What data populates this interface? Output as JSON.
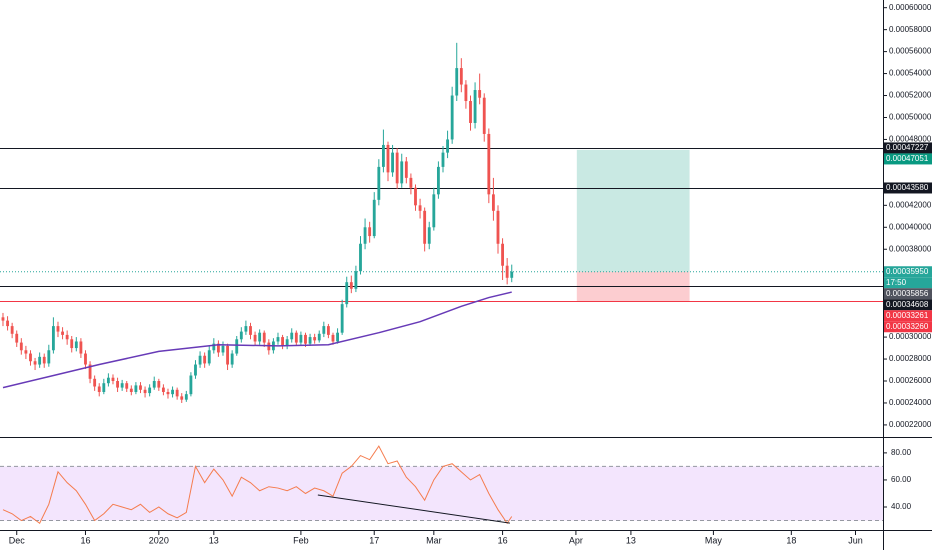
{
  "chart_data": [
    {
      "type": "candlestick",
      "up_color": "#26a69a",
      "down_color": "#ef5350",
      "xlim": [
        -0.65,
        192
      ],
      "ylim": [
        0.000209,
        0.000607
      ],
      "open": [
        0.000318,
        0.000315,
        0.00031,
        0.000303,
        0.000295,
        0.000288,
        0.000285,
        0.000278,
        0.000275,
        0.000282,
        0.000276,
        0.000288,
        0.00031,
        0.000305,
        0.000302,
        0.000298,
        0.00029,
        0.000296,
        0.000285,
        0.000275,
        0.000262,
        0.000255,
        0.00025,
        0.000258,
        0.000263,
        0.00026,
        0.000254,
        0.000258,
        0.000253,
        0.00025,
        0.000256,
        0.000252,
        0.000249,
        0.000254,
        0.00026,
        0.000254,
        0.00025,
        0.000248,
        0.000252,
        0.000246,
        0.000243,
        0.000248,
        0.000265,
        0.000275,
        0.000283,
        0.000276,
        0.000288,
        0.000294,
        0.000286,
        0.000292,
        0.000275,
        0.000285,
        0.000298,
        0.000305,
        0.00031,
        0.000302,
        0.000296,
        0.000304,
        0.000295,
        0.000288,
        0.000296,
        0.0003,
        0.000292,
        0.000298,
        0.000304,
        0.000295,
        0.000302,
        0.000294,
        0.0003,
        0.000297,
        0.000303,
        0.00031,
        0.000302,
        0.000296,
        0.000304,
        0.00033,
        0.00035,
        0.000344,
        0.00036,
        0.000385,
        0.0004,
        0.000392,
        0.000425,
        0.000455,
        0.000475,
        0.00045,
        0.000468,
        0.00044,
        0.00046,
        0.000445,
        0.000436,
        0.00042,
        0.000415,
        0.000385,
        0.0004,
        0.00043,
        0.000455,
        0.000468,
        0.00048,
        0.00052,
        0.000545,
        0.00053,
        0.000515,
        0.000495,
        0.000525,
        0.000518,
        0.000485,
        0.00043,
        0.000415,
        0.000385,
        0.000365,
        0.000354
      ],
      "high": [
        0.000322,
        0.000319,
        0.000313,
        0.000306,
        0.000299,
        0.000292,
        0.000288,
        0.000281,
        0.000286,
        0.000285,
        0.000293,
        0.000318,
        0.000314,
        0.000309,
        0.000306,
        0.000301,
        0.0003,
        0.000299,
        0.000288,
        0.000278,
        0.000265,
        0.000258,
        0.000262,
        0.000267,
        0.000266,
        0.000263,
        0.000261,
        0.00026,
        0.000256,
        0.000259,
        0.000259,
        0.000255,
        0.000257,
        0.000264,
        0.000262,
        0.000257,
        0.000253,
        0.000255,
        0.000254,
        0.000249,
        0.000251,
        0.000268,
        0.000279,
        0.000287,
        0.000286,
        0.000292,
        0.000299,
        0.000297,
        0.000296,
        0.000294,
        0.000288,
        0.000301,
        0.000309,
        0.000315,
        0.000313,
        0.000305,
        0.000307,
        0.000306,
        0.000298,
        0.000299,
        0.000304,
        0.000302,
        0.000301,
        0.000308,
        0.000306,
        0.000305,
        0.000304,
        0.000303,
        0.000303,
        0.000306,
        0.000314,
        0.000312,
        0.000304,
        0.000308,
        0.000334,
        0.000355,
        0.000356,
        0.000365,
        0.000392,
        0.000408,
        0.000405,
        0.000432,
        0.000462,
        0.000489,
        0.000478,
        0.000475,
        0.000472,
        0.000467,
        0.000464,
        0.000449,
        0.000439,
        0.000426,
        0.000418,
        0.000405,
        0.000436,
        0.00046,
        0.000474,
        0.000488,
        0.000528,
        0.000568,
        0.000554,
        0.000534,
        0.00052,
        0.000532,
        0.00054,
        0.000522,
        0.00049,
        0.000445,
        0.00042,
        0.00039,
        0.000372,
        0.000366
      ],
      "low": [
        0.00031,
        0.000306,
        0.000299,
        0.000291,
        0.000284,
        0.00028,
        0.000274,
        0.00027,
        0.000272,
        0.000272,
        0.000273,
        0.000285,
        0.0003,
        0.000298,
        0.000293,
        0.000286,
        0.000287,
        0.000281,
        0.000271,
        0.000258,
        0.000251,
        0.000246,
        0.000248,
        0.000255,
        0.000257,
        0.00025,
        0.000251,
        0.00025,
        0.000247,
        0.000248,
        0.000249,
        0.000245,
        0.000246,
        0.000252,
        0.000251,
        0.000247,
        0.000244,
        0.000245,
        0.000243,
        0.00024,
        0.000241,
        0.000246,
        0.000262,
        0.000272,
        0.000272,
        0.000274,
        0.000285,
        0.000282,
        0.000283,
        0.00027,
        0.000272,
        0.000283,
        0.000295,
        0.000302,
        0.000298,
        0.000292,
        0.000293,
        0.000291,
        0.000284,
        0.000285,
        0.000293,
        0.000289,
        0.000289,
        0.000295,
        0.000292,
        0.000293,
        0.000291,
        0.000292,
        0.000294,
        0.000295,
        0.0003,
        0.000299,
        0.000293,
        0.000294,
        0.000302,
        0.000327,
        0.00034,
        0.000341,
        0.000357,
        0.00038,
        0.000386,
        0.00039,
        0.00042,
        0.00045,
        0.000442,
        0.000446,
        0.000435,
        0.000436,
        0.00044,
        0.00043,
        0.000415,
        0.000408,
        0.000378,
        0.00038,
        0.000397,
        0.000426,
        0.00045,
        0.000463,
        0.000476,
        0.000515,
        0.000523,
        0.000508,
        0.000488,
        0.00049,
        0.000512,
        0.000478,
        0.000422,
        0.000406,
        0.000376,
        0.000352,
        0.000348,
        0.00035
      ],
      "close": [
        0.000315,
        0.00031,
        0.000303,
        0.000295,
        0.000288,
        0.000285,
        0.000278,
        0.000275,
        0.000282,
        0.000276,
        0.000288,
        0.00031,
        0.000305,
        0.000302,
        0.000298,
        0.00029,
        0.000296,
        0.000285,
        0.000275,
        0.000262,
        0.000255,
        0.00025,
        0.000258,
        0.000263,
        0.00026,
        0.000254,
        0.000258,
        0.000253,
        0.00025,
        0.000256,
        0.000252,
        0.000249,
        0.000254,
        0.00026,
        0.000254,
        0.00025,
        0.000248,
        0.000252,
        0.000246,
        0.000243,
        0.000248,
        0.000265,
        0.000275,
        0.000283,
        0.000276,
        0.000288,
        0.000294,
        0.000286,
        0.000292,
        0.000275,
        0.000285,
        0.000298,
        0.000305,
        0.00031,
        0.000302,
        0.000296,
        0.000304,
        0.000295,
        0.000288,
        0.000296,
        0.0003,
        0.000292,
        0.000298,
        0.000304,
        0.000295,
        0.000302,
        0.000294,
        0.0003,
        0.000297,
        0.000303,
        0.00031,
        0.000302,
        0.000296,
        0.000304,
        0.00033,
        0.00035,
        0.000344,
        0.00036,
        0.000385,
        0.0004,
        0.000392,
        0.000425,
        0.000455,
        0.000475,
        0.00045,
        0.000468,
        0.00044,
        0.00046,
        0.000445,
        0.000436,
        0.00042,
        0.000415,
        0.000385,
        0.0004,
        0.00043,
        0.000455,
        0.000468,
        0.00048,
        0.00052,
        0.000545,
        0.00053,
        0.000515,
        0.000495,
        0.000525,
        0.000518,
        0.000485,
        0.00043,
        0.000415,
        0.000385,
        0.000365,
        0.000354,
        0.0003595
      ],
      "ma": {
        "color": "#673ab7",
        "x": [
          0,
          10,
          21,
          34,
          47,
          60,
          71,
          82,
          91,
          100,
          106,
          111
        ],
        "values": [
          0.000254,
          0.000264,
          0.000275,
          0.000287,
          0.000293,
          0.000292,
          0.000293,
          0.000304,
          0.000314,
          0.000328,
          0.000336,
          0.000341
        ]
      },
      "levels": [
        {
          "value": 0.00047227,
          "label": "0.00047227",
          "color": "#131722"
        },
        {
          "value": 0.0004358,
          "label": "0.00043580",
          "color": "#131722"
        },
        {
          "value": 0.00034608,
          "label": "0.00034608",
          "color": "#131722"
        },
        {
          "value": 0.0003326,
          "label": "0.00033260",
          "color": "#f23645"
        }
      ],
      "last_price": {
        "value": 0.0003595,
        "label": "0.00035950",
        "countdown": "17:50",
        "color": "#26a69a"
      },
      "price_labels": [
        {
          "value": 0.00035856,
          "label": "0.00035856",
          "color": "#50535e"
        }
      ],
      "position": {
        "x": [
          125.2,
          149.8
        ],
        "entry": 0.0003595,
        "target": 0.00047051,
        "target_label": "0.00047051",
        "target_color": "#089981",
        "stop": 0.00033261,
        "stop_label": "0.00033261",
        "stop_color": "#f23645"
      },
      "yticks": [
        {
          "value": 0.0006,
          "label": "0.00060000"
        },
        {
          "value": 0.00058,
          "label": "0.00058000"
        },
        {
          "value": 0.00056,
          "label": "0.00056000"
        },
        {
          "value": 0.00054,
          "label": "0.00054000"
        },
        {
          "value": 0.00052,
          "label": "0.00052000"
        },
        {
          "value": 0.0005,
          "label": "0.00050000"
        },
        {
          "value": 0.00048,
          "label": "0.00048000"
        },
        {
          "value": 0.00042,
          "label": "0.00042000"
        },
        {
          "value": 0.0004,
          "label": "0.00040000"
        },
        {
          "value": 0.00038,
          "label": "0.00038000"
        },
        {
          "value": 0.0003,
          "label": "0.00030000"
        },
        {
          "value": 0.00028,
          "label": "0.00028000"
        },
        {
          "value": 0.00026,
          "label": "0.00026000"
        },
        {
          "value": 0.00024,
          "label": "0.00024000"
        },
        {
          "value": 0.00022,
          "label": "0.00022000"
        }
      ],
      "xticks": [
        {
          "value": 3,
          "label": "Dec"
        },
        {
          "value": 18,
          "label": "16"
        },
        {
          "value": 34,
          "label": "2020"
        },
        {
          "value": 46,
          "label": "13"
        },
        {
          "value": 65,
          "label": "Feb"
        },
        {
          "value": 81,
          "label": "17"
        },
        {
          "value": 94,
          "label": "Mar"
        },
        {
          "value": 109,
          "label": "16"
        },
        {
          "value": 125,
          "label": "Apr"
        },
        {
          "value": 137,
          "label": "13"
        },
        {
          "value": 155,
          "label": "May"
        },
        {
          "value": 172,
          "label": "18"
        },
        {
          "value": 186,
          "label": "Jun"
        }
      ]
    },
    {
      "type": "line",
      "xlim": [
        -0.65,
        192
      ],
      "ylim": [
        23,
        91
      ],
      "band": [
        30,
        70
      ],
      "band_color": "#f3e5fd",
      "series": [
        {
          "color": "#f57c4e",
          "x": [
            0,
            2,
            4,
            6,
            8,
            10,
            12,
            14,
            16,
            18,
            20,
            22,
            24,
            26,
            28,
            30,
            32,
            34,
            36,
            38,
            40,
            42,
            44,
            46,
            48,
            50,
            52,
            54,
            56,
            58,
            60,
            62,
            64,
            66,
            68,
            70,
            72,
            74,
            76,
            78,
            80,
            82,
            84,
            86,
            88,
            90,
            92,
            94,
            96,
            98,
            100,
            102,
            104,
            106,
            108,
            110,
            111
          ],
          "values": [
            38,
            35,
            30,
            33,
            28,
            42,
            66,
            58,
            52,
            42,
            30,
            35,
            42,
            40,
            38,
            42,
            36,
            40,
            35,
            32,
            36,
            70,
            58,
            68,
            60,
            48,
            62,
            58,
            52,
            55,
            54,
            52,
            55,
            50,
            54,
            52,
            48,
            65,
            70,
            78,
            75,
            85,
            72,
            74,
            62,
            55,
            45,
            60,
            70,
            72,
            66,
            60,
            64,
            50,
            38,
            28,
            33
          ]
        }
      ],
      "trendline": {
        "x": [
          68.7,
          110.6
        ],
        "values": [
          48.9,
          28.1
        ]
      },
      "yticks": [
        {
          "value": 80,
          "label": "80.00"
        },
        {
          "value": 60,
          "label": "60.00"
        },
        {
          "value": 40,
          "label": "40.00"
        }
      ]
    }
  ]
}
